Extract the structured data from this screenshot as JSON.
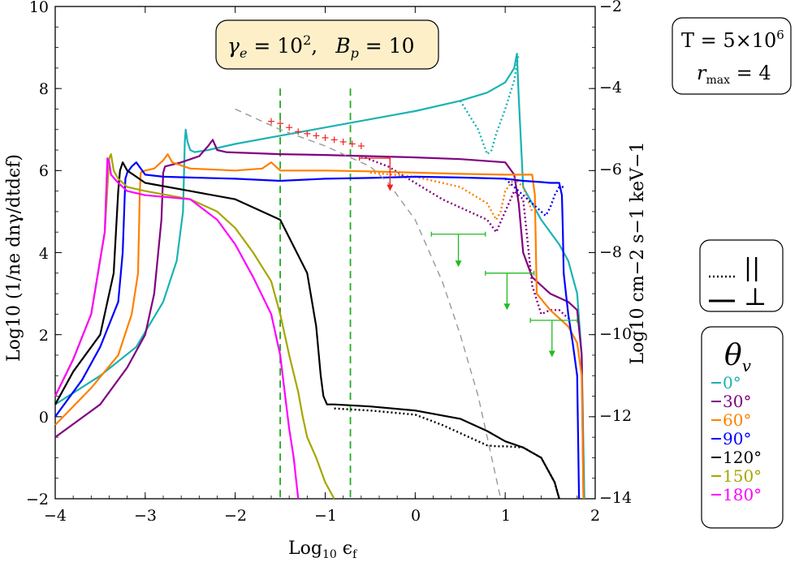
{
  "chart_data": {
    "type": "line",
    "title_box": {
      "gamma_e": "γ",
      "gamma_e_sub": "e",
      "gamma_e_eq": " = 10",
      "gamma_e_sup": "2",
      "sep": ",",
      "bp": "B",
      "bp_sub": "p",
      "bp_eq": " = 10"
    },
    "info_box": {
      "temp_line": "T = 5×10",
      "temp_sup": "6",
      "rmax_r": "r",
      "rmax_sub": "max",
      "rmax_eq": " = 4"
    },
    "polarization_legend": {
      "perp": "⊥",
      "par": "||"
    },
    "theta_legend": {
      "symbol": "θ",
      "symbol_sub": "v",
      "entries": [
        {
          "label": "0°",
          "color": "#19b3b3"
        },
        {
          "label": "30°",
          "color": "#800080"
        },
        {
          "label": "60°",
          "color": "#ff8000"
        },
        {
          "label": "90°",
          "color": "#0000ff"
        },
        {
          "label": "120°",
          "color": "#000000"
        },
        {
          "label": "150°",
          "color": "#a6a600"
        },
        {
          "label": "180°",
          "color": "#ff00ff"
        }
      ]
    },
    "xlabel": "Log",
    "xlabel_sub": "10",
    "xlabel_var": " ϵ",
    "xlabel_var_sub": "f",
    "ylabel": "Log10 (1/ne dnγ/dtdϵf)",
    "y2label": "Log10 cm−2 s−1 keV−1",
    "xlim": [
      -4,
      2
    ],
    "ylim": [
      -2,
      10
    ],
    "y2lim": [
      -14,
      -2
    ],
    "xticks": [
      "−4",
      "−3",
      "−2",
      "−1",
      "0",
      "1",
      "2"
    ],
    "yticks": [
      "−2",
      "0",
      "2",
      "4",
      "6",
      "8",
      "10"
    ],
    "y2ticks": [
      "−14",
      "−12",
      "−10",
      "−8",
      "−6",
      "−4",
      "−2"
    ],
    "vlines": [
      -1.5,
      -0.72
    ],
    "series": [
      {
        "name": "0°",
        "color": "#19b3b3",
        "style": "solid",
        "x": [
          -4.0,
          -3.5,
          -3.1,
          -2.8,
          -2.65,
          -2.58,
          -2.56,
          -2.55,
          -2.53,
          -2.5,
          -2.45,
          -2.3,
          -2.0,
          -1.5,
          -1.0,
          -0.5,
          0.0,
          0.5,
          0.8,
          1.0,
          1.1,
          1.13,
          1.15,
          1.2,
          1.4,
          1.6,
          1.7,
          1.8,
          1.85,
          1.88
        ],
        "y": [
          0.3,
          1.0,
          1.7,
          2.8,
          3.8,
          5.0,
          6.7,
          7.0,
          6.7,
          6.5,
          6.45,
          6.5,
          6.65,
          6.85,
          7.05,
          7.25,
          7.45,
          7.7,
          7.9,
          8.15,
          8.5,
          8.85,
          7.8,
          5.6,
          4.8,
          4.2,
          3.8,
          3.0,
          1.5,
          -2.0
        ]
      },
      {
        "name": "0° par",
        "color": "#19b3b3",
        "style": "dotted",
        "x": [
          0.5,
          0.7,
          0.8,
          0.85,
          0.9,
          1.0,
          1.1,
          1.15
        ],
        "y": [
          7.7,
          7.0,
          6.4,
          6.5,
          6.9,
          7.5,
          8.2,
          8.85
        ]
      },
      {
        "name": "30°",
        "color": "#800080",
        "style": "solid",
        "x": [
          -4.0,
          -3.5,
          -3.2,
          -3.0,
          -2.9,
          -2.82,
          -2.8,
          -2.78,
          -2.6,
          -2.4,
          -2.3,
          -2.25,
          -2.2,
          -2.1,
          -1.5,
          -1.0,
          -0.5,
          0.0,
          0.5,
          1.0,
          1.1,
          1.15,
          1.2,
          1.3,
          1.4,
          1.5,
          1.7,
          1.8,
          1.85,
          1.87
        ],
        "y": [
          -0.5,
          0.3,
          1.2,
          2.0,
          3.0,
          4.8,
          5.95,
          6.1,
          6.2,
          6.35,
          6.6,
          6.75,
          6.5,
          6.45,
          6.4,
          6.38,
          6.35,
          6.32,
          6.28,
          6.2,
          5.9,
          5.2,
          4.0,
          3.4,
          3.2,
          3.0,
          2.8,
          2.6,
          1.5,
          -2.0
        ]
      },
      {
        "name": "30° par",
        "color": "#800080",
        "style": "dotted",
        "x": [
          -0.6,
          -0.3,
          0.0,
          0.3,
          0.6,
          0.8,
          0.9,
          1.0,
          1.1,
          1.2,
          1.3,
          1.4,
          1.5,
          1.6,
          1.7
        ],
        "y": [
          6.35,
          6.1,
          5.7,
          5.3,
          5.0,
          4.8,
          4.5,
          5.0,
          5.5,
          5.3,
          3.2,
          2.5,
          2.6,
          2.6,
          2.4
        ]
      },
      {
        "name": "60°",
        "color": "#ff8000",
        "style": "solid",
        "x": [
          -4.0,
          -3.6,
          -3.3,
          -3.15,
          -3.08,
          -3.06,
          -3.05,
          -3.0,
          -2.9,
          -2.8,
          -2.75,
          -2.7,
          -2.5,
          -2.0,
          -1.7,
          -1.6,
          -1.5,
          -1.0,
          -0.5,
          0.0,
          0.5,
          1.0,
          1.3,
          1.33,
          1.35,
          1.5,
          1.7,
          1.8,
          1.85,
          1.87
        ],
        "y": [
          -0.2,
          0.7,
          1.5,
          2.5,
          3.5,
          5.5,
          5.95,
          6.0,
          6.05,
          6.25,
          6.4,
          6.2,
          6.05,
          6.0,
          6.05,
          6.2,
          6.0,
          6.0,
          5.98,
          5.95,
          5.92,
          5.9,
          5.9,
          5.4,
          3.0,
          2.6,
          2.2,
          1.8,
          1.0,
          -2.0
        ]
      },
      {
        "name": "60° par",
        "color": "#ff8000",
        "style": "dotted",
        "x": [
          -0.5,
          0.0,
          0.5,
          0.8,
          0.9,
          0.95,
          1.0,
          1.1,
          1.2,
          1.3
        ],
        "y": [
          5.95,
          5.85,
          5.6,
          5.2,
          4.8,
          5.0,
          5.5,
          5.8,
          5.6,
          5.0
        ]
      },
      {
        "name": "90°",
        "color": "#0000ff",
        "style": "solid",
        "x": [
          -4.0,
          -3.7,
          -3.5,
          -3.3,
          -3.25,
          -3.22,
          -3.2,
          -3.15,
          -3.1,
          -3.0,
          -2.8,
          -2.5,
          -2.0,
          -1.5,
          -1.0,
          -0.5,
          0.0,
          0.5,
          1.0,
          1.2,
          1.4,
          1.5,
          1.6,
          1.63,
          1.64,
          1.65,
          1.7,
          1.75,
          1.8,
          1.82
        ],
        "y": [
          0.0,
          0.9,
          1.7,
          2.8,
          4.0,
          5.8,
          5.95,
          6.1,
          6.2,
          5.9,
          5.85,
          5.83,
          5.8,
          5.75,
          5.8,
          5.82,
          5.85,
          5.83,
          5.8,
          5.75,
          5.72,
          5.7,
          5.7,
          5.4,
          4.6,
          3.5,
          2.5,
          1.8,
          1.0,
          -2.0
        ]
      },
      {
        "name": "90° par",
        "color": "#0000ff",
        "style": "dotted",
        "x": [
          1.0,
          1.1,
          1.2,
          1.3,
          1.4,
          1.45,
          1.5,
          1.55,
          1.6,
          1.65
        ],
        "y": [
          5.8,
          5.6,
          5.4,
          5.2,
          5.0,
          4.9,
          5.1,
          5.4,
          5.6,
          5.6
        ]
      },
      {
        "name": "120°",
        "color": "#000000",
        "style": "solid",
        "x": [
          -4.0,
          -3.8,
          -3.5,
          -3.35,
          -3.3,
          -3.28,
          -3.25,
          -3.2,
          -3.1,
          -3.0,
          -2.5,
          -2.0,
          -1.5,
          -1.2,
          -1.1,
          -1.05,
          -1.02,
          -1.0,
          -0.98,
          -0.95,
          -0.9,
          -0.5,
          0.0,
          0.5,
          0.8,
          1.0,
          1.2,
          1.4,
          1.55,
          1.6
        ],
        "y": [
          0.3,
          1.1,
          2.0,
          3.5,
          5.5,
          6.0,
          6.2,
          6.0,
          5.85,
          5.7,
          5.5,
          5.3,
          4.8,
          3.5,
          2.2,
          1.0,
          0.5,
          0.4,
          0.3,
          0.3,
          0.3,
          0.25,
          0.15,
          -0.05,
          -0.35,
          -0.6,
          -0.75,
          -1.0,
          -1.6,
          -2.0
        ]
      },
      {
        "name": "120° par",
        "color": "#000000",
        "style": "dotted",
        "x": [
          -0.9,
          -0.5,
          0.0,
          0.3,
          0.5,
          0.7,
          0.8,
          0.9,
          1.0,
          1.2,
          1.4,
          1.55,
          1.6
        ],
        "y": [
          0.2,
          0.15,
          0.05,
          -0.2,
          -0.4,
          -0.6,
          -0.7,
          -0.72,
          -0.72,
          -0.75,
          -1.0,
          -1.6,
          -2.0
        ]
      },
      {
        "name": "150°",
        "color": "#a6a600",
        "style": "solid",
        "x": [
          -4.0,
          -3.8,
          -3.6,
          -3.45,
          -3.4,
          -3.38,
          -3.35,
          -3.3,
          -3.2,
          -3.0,
          -2.5,
          -2.2,
          -2.0,
          -1.8,
          -1.6,
          -1.5,
          -1.4,
          -1.3,
          -1.25,
          -1.2,
          -1.1,
          -1.0,
          -0.9
        ],
        "y": [
          0.5,
          1.4,
          2.5,
          4.5,
          6.3,
          6.4,
          6.0,
          5.8,
          5.6,
          5.5,
          5.3,
          5.0,
          4.6,
          4.0,
          3.3,
          2.5,
          1.5,
          0.6,
          0.0,
          -0.5,
          -1.0,
          -1.6,
          -2.0
        ]
      },
      {
        "name": "180°",
        "color": "#ff00ff",
        "style": "solid",
        "x": [
          -4.0,
          -3.8,
          -3.6,
          -3.45,
          -3.42,
          -3.4,
          -3.38,
          -3.3,
          -3.2,
          -3.0,
          -2.5,
          -2.2,
          -2.0,
          -1.8,
          -1.6,
          -1.5,
          -1.45,
          -1.4,
          -1.35,
          -1.32,
          -1.3
        ],
        "y": [
          0.5,
          1.4,
          2.5,
          4.5,
          6.3,
          6.2,
          5.9,
          5.7,
          5.5,
          5.4,
          5.3,
          4.8,
          4.2,
          3.4,
          2.5,
          1.5,
          0.6,
          -0.3,
          -1.0,
          -1.6,
          -2.0
        ]
      },
      {
        "name": "model",
        "color": "#999999",
        "style": "dashed",
        "x": [
          -2.0,
          -1.5,
          -1.0,
          -0.5,
          -0.3,
          0.0,
          0.3,
          0.5,
          0.7,
          0.8,
          0.9,
          0.95
        ],
        "y": [
          7.5,
          7.0,
          6.6,
          6.1,
          5.7,
          4.8,
          3.3,
          2.0,
          0.5,
          -0.5,
          -1.5,
          -2.0
        ]
      }
    ],
    "data_points": {
      "color": "#ee2222",
      "x": [
        -1.6,
        -1.5,
        -1.4,
        -1.3,
        -1.2,
        -1.1,
        -1.0,
        -0.9,
        -0.8,
        -0.7,
        -0.6
      ],
      "y": [
        7.2,
        7.15,
        7.05,
        6.95,
        6.9,
        6.85,
        6.8,
        6.75,
        6.7,
        6.65,
        6.6
      ]
    },
    "upper_limits": [
      {
        "x": -0.28,
        "x_lo": -0.62,
        "x_hi": -0.28,
        "y": 6.3,
        "y_end": 5.5,
        "color": "#ee2222"
      },
      {
        "x": 0.48,
        "x_lo": 0.18,
        "x_hi": 0.78,
        "y": 4.45,
        "y_end": 3.65,
        "color": "#22bb22"
      },
      {
        "x": 1.02,
        "x_lo": 0.78,
        "x_hi": 1.32,
        "y": 3.5,
        "y_end": 2.6,
        "color": "#22bb22"
      },
      {
        "x": 1.52,
        "x_lo": 1.28,
        "x_hi": 1.8,
        "y": 2.35,
        "y_end": 1.45,
        "color": "#22bb22"
      }
    ]
  }
}
